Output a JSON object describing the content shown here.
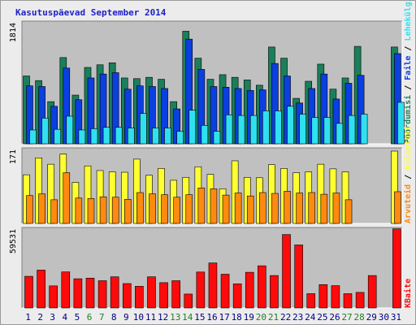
{
  "page": {
    "title": "Kasutuspäevad September 2014"
  },
  "colors": {
    "plot_bg": "#c0c0c0",
    "pageviews": "#1a7f5a",
    "files": "#0a3fe0",
    "hits": "#30e0f0",
    "visits": "#ffff30",
    "sites": "#ff8a10",
    "kbytes": "#ff0a0a",
    "weekend_day": "#207f20",
    "normal_day": "#000080"
  },
  "chart_data": [
    {
      "type": "bar",
      "ylabel_left": "1814",
      "right_labels": [
        {
          "text": "Pöördumisi",
          "color": "#1a7f5a"
        },
        {
          "text": "Faile",
          "color": "#0a3fe0"
        },
        {
          "text": "Lehekülgi",
          "color": "#30e0f0"
        }
      ],
      "ymax": 1814,
      "series": [
        {
          "key": "pageviews",
          "values": [
            1030,
            960,
            640,
            1310,
            740,
            1160,
            1200,
            1230,
            1000,
            990,
            1010,
            980,
            640,
            1710,
            1300,
            980,
            1050,
            1010,
            970,
            890,
            1470,
            1300,
            690,
            950,
            1210,
            830,
            1000,
            1480,
            0,
            0,
            1470
          ]
        },
        {
          "key": "files",
          "values": [
            880,
            870,
            570,
            1150,
            670,
            1000,
            1060,
            1080,
            830,
            880,
            870,
            840,
            530,
            1590,
            1130,
            870,
            860,
            840,
            810,
            820,
            1220,
            1030,
            620,
            840,
            1060,
            680,
            920,
            1040,
            0,
            0,
            1370
          ]
        },
        {
          "key": "hits",
          "values": [
            210,
            390,
            220,
            420,
            210,
            230,
            250,
            250,
            240,
            460,
            240,
            240,
            190,
            510,
            280,
            190,
            440,
            430,
            430,
            500,
            500,
            570,
            450,
            400,
            400,
            310,
            430,
            450,
            0,
            0,
            630
          ]
        }
      ]
    },
    {
      "type": "bar",
      "ylabel_left": "171",
      "right_labels": [
        {
          "text": "Arvuteid",
          "color": "#ff8a10"
        },
        {
          "text": "Külastusi",
          "color": "#ffff30"
        }
      ],
      "ymax": 171,
      "series": [
        {
          "key": "visits",
          "values": [
            115,
            155,
            140,
            164,
            97,
            136,
            125,
            122,
            121,
            152,
            114,
            130,
            102,
            109,
            134,
            116,
            82,
            148,
            109,
            108,
            139,
            130,
            120,
            122,
            140,
            129,
            122,
            0,
            0,
            0,
            171
          ]
        },
        {
          "key": "sites",
          "values": [
            66,
            70,
            56,
            120,
            60,
            59,
            63,
            62,
            57,
            73,
            70,
            68,
            62,
            68,
            84,
            82,
            67,
            72,
            65,
            73,
            71,
            76,
            72,
            73,
            69,
            72,
            56,
            0,
            0,
            0,
            75
          ]
        }
      ]
    },
    {
      "type": "bar",
      "ylabel_left": "59531",
      "right_labels": [
        {
          "text": "KBaite",
          "color": "#ff0a0a"
        }
      ],
      "ymax": 59531,
      "series": [
        {
          "key": "kbytes",
          "values": [
            24400,
            29200,
            17000,
            27800,
            22500,
            23000,
            21000,
            24000,
            18800,
            16700,
            24000,
            19500,
            21000,
            10700,
            27700,
            34700,
            26000,
            18600,
            27500,
            32500,
            25000,
            56600,
            48600,
            11000,
            18000,
            17200,
            11000,
            12000,
            25000,
            0,
            61000
          ]
        }
      ]
    }
  ],
  "x_axis": {
    "days": [
      {
        "label": "1",
        "weekend": false
      },
      {
        "label": "2",
        "weekend": false
      },
      {
        "label": "3",
        "weekend": false
      },
      {
        "label": "4",
        "weekend": false
      },
      {
        "label": "5",
        "weekend": false
      },
      {
        "label": "6",
        "weekend": true
      },
      {
        "label": "7",
        "weekend": true
      },
      {
        "label": "8",
        "weekend": false
      },
      {
        "label": "9",
        "weekend": false
      },
      {
        "label": "10",
        "weekend": false
      },
      {
        "label": "11",
        "weekend": false
      },
      {
        "label": "12",
        "weekend": false
      },
      {
        "label": "13",
        "weekend": true
      },
      {
        "label": "14",
        "weekend": true
      },
      {
        "label": "15",
        "weekend": false
      },
      {
        "label": "16",
        "weekend": false
      },
      {
        "label": "17",
        "weekend": false
      },
      {
        "label": "18",
        "weekend": false
      },
      {
        "label": "19",
        "weekend": false
      },
      {
        "label": "20",
        "weekend": true
      },
      {
        "label": "21",
        "weekend": true
      },
      {
        "label": "22",
        "weekend": false
      },
      {
        "label": "23",
        "weekend": false
      },
      {
        "label": "24",
        "weekend": false
      },
      {
        "label": "25",
        "weekend": false
      },
      {
        "label": "26",
        "weekend": false
      },
      {
        "label": "27",
        "weekend": true
      },
      {
        "label": "28",
        "weekend": true
      },
      {
        "label": "29",
        "weekend": false
      },
      {
        "label": "30",
        "weekend": false
      },
      {
        "label": "31",
        "weekend": false
      }
    ]
  }
}
